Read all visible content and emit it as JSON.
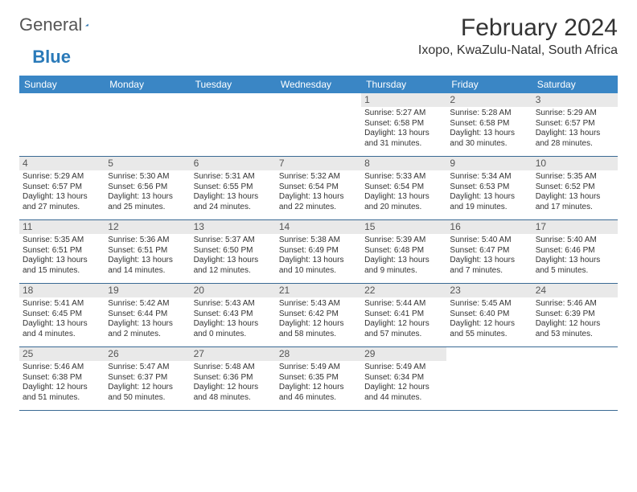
{
  "logo": {
    "text1": "General",
    "text2": "Blue",
    "triangle_color": "#2a7ab9"
  },
  "title": "February 2024",
  "location": "Ixopo, KwaZulu-Natal, South Africa",
  "colors": {
    "header_bg": "#3a86c5",
    "header_fg": "#ffffff",
    "row_border": "#3a6a94",
    "daynum_bg": "#e9e9e9",
    "daynum_fg": "#555555",
    "text": "#333333",
    "background": "#ffffff"
  },
  "day_headers": [
    "Sunday",
    "Monday",
    "Tuesday",
    "Wednesday",
    "Thursday",
    "Friday",
    "Saturday"
  ],
  "weeks": [
    [
      {
        "empty": true
      },
      {
        "empty": true
      },
      {
        "empty": true
      },
      {
        "empty": true
      },
      {
        "num": "1",
        "sunrise": "Sunrise: 5:27 AM",
        "sunset": "Sunset: 6:58 PM",
        "daylight": "Daylight: 13 hours and 31 minutes."
      },
      {
        "num": "2",
        "sunrise": "Sunrise: 5:28 AM",
        "sunset": "Sunset: 6:58 PM",
        "daylight": "Daylight: 13 hours and 30 minutes."
      },
      {
        "num": "3",
        "sunrise": "Sunrise: 5:29 AM",
        "sunset": "Sunset: 6:57 PM",
        "daylight": "Daylight: 13 hours and 28 minutes."
      }
    ],
    [
      {
        "num": "4",
        "sunrise": "Sunrise: 5:29 AM",
        "sunset": "Sunset: 6:57 PM",
        "daylight": "Daylight: 13 hours and 27 minutes."
      },
      {
        "num": "5",
        "sunrise": "Sunrise: 5:30 AM",
        "sunset": "Sunset: 6:56 PM",
        "daylight": "Daylight: 13 hours and 25 minutes."
      },
      {
        "num": "6",
        "sunrise": "Sunrise: 5:31 AM",
        "sunset": "Sunset: 6:55 PM",
        "daylight": "Daylight: 13 hours and 24 minutes."
      },
      {
        "num": "7",
        "sunrise": "Sunrise: 5:32 AM",
        "sunset": "Sunset: 6:54 PM",
        "daylight": "Daylight: 13 hours and 22 minutes."
      },
      {
        "num": "8",
        "sunrise": "Sunrise: 5:33 AM",
        "sunset": "Sunset: 6:54 PM",
        "daylight": "Daylight: 13 hours and 20 minutes."
      },
      {
        "num": "9",
        "sunrise": "Sunrise: 5:34 AM",
        "sunset": "Sunset: 6:53 PM",
        "daylight": "Daylight: 13 hours and 19 minutes."
      },
      {
        "num": "10",
        "sunrise": "Sunrise: 5:35 AM",
        "sunset": "Sunset: 6:52 PM",
        "daylight": "Daylight: 13 hours and 17 minutes."
      }
    ],
    [
      {
        "num": "11",
        "sunrise": "Sunrise: 5:35 AM",
        "sunset": "Sunset: 6:51 PM",
        "daylight": "Daylight: 13 hours and 15 minutes."
      },
      {
        "num": "12",
        "sunrise": "Sunrise: 5:36 AM",
        "sunset": "Sunset: 6:51 PM",
        "daylight": "Daylight: 13 hours and 14 minutes."
      },
      {
        "num": "13",
        "sunrise": "Sunrise: 5:37 AM",
        "sunset": "Sunset: 6:50 PM",
        "daylight": "Daylight: 13 hours and 12 minutes."
      },
      {
        "num": "14",
        "sunrise": "Sunrise: 5:38 AM",
        "sunset": "Sunset: 6:49 PM",
        "daylight": "Daylight: 13 hours and 10 minutes."
      },
      {
        "num": "15",
        "sunrise": "Sunrise: 5:39 AM",
        "sunset": "Sunset: 6:48 PM",
        "daylight": "Daylight: 13 hours and 9 minutes."
      },
      {
        "num": "16",
        "sunrise": "Sunrise: 5:40 AM",
        "sunset": "Sunset: 6:47 PM",
        "daylight": "Daylight: 13 hours and 7 minutes."
      },
      {
        "num": "17",
        "sunrise": "Sunrise: 5:40 AM",
        "sunset": "Sunset: 6:46 PM",
        "daylight": "Daylight: 13 hours and 5 minutes."
      }
    ],
    [
      {
        "num": "18",
        "sunrise": "Sunrise: 5:41 AM",
        "sunset": "Sunset: 6:45 PM",
        "daylight": "Daylight: 13 hours and 4 minutes."
      },
      {
        "num": "19",
        "sunrise": "Sunrise: 5:42 AM",
        "sunset": "Sunset: 6:44 PM",
        "daylight": "Daylight: 13 hours and 2 minutes."
      },
      {
        "num": "20",
        "sunrise": "Sunrise: 5:43 AM",
        "sunset": "Sunset: 6:43 PM",
        "daylight": "Daylight: 13 hours and 0 minutes."
      },
      {
        "num": "21",
        "sunrise": "Sunrise: 5:43 AM",
        "sunset": "Sunset: 6:42 PM",
        "daylight": "Daylight: 12 hours and 58 minutes."
      },
      {
        "num": "22",
        "sunrise": "Sunrise: 5:44 AM",
        "sunset": "Sunset: 6:41 PM",
        "daylight": "Daylight: 12 hours and 57 minutes."
      },
      {
        "num": "23",
        "sunrise": "Sunrise: 5:45 AM",
        "sunset": "Sunset: 6:40 PM",
        "daylight": "Daylight: 12 hours and 55 minutes."
      },
      {
        "num": "24",
        "sunrise": "Sunrise: 5:46 AM",
        "sunset": "Sunset: 6:39 PM",
        "daylight": "Daylight: 12 hours and 53 minutes."
      }
    ],
    [
      {
        "num": "25",
        "sunrise": "Sunrise: 5:46 AM",
        "sunset": "Sunset: 6:38 PM",
        "daylight": "Daylight: 12 hours and 51 minutes."
      },
      {
        "num": "26",
        "sunrise": "Sunrise: 5:47 AM",
        "sunset": "Sunset: 6:37 PM",
        "daylight": "Daylight: 12 hours and 50 minutes."
      },
      {
        "num": "27",
        "sunrise": "Sunrise: 5:48 AM",
        "sunset": "Sunset: 6:36 PM",
        "daylight": "Daylight: 12 hours and 48 minutes."
      },
      {
        "num": "28",
        "sunrise": "Sunrise: 5:49 AM",
        "sunset": "Sunset: 6:35 PM",
        "daylight": "Daylight: 12 hours and 46 minutes."
      },
      {
        "num": "29",
        "sunrise": "Sunrise: 5:49 AM",
        "sunset": "Sunset: 6:34 PM",
        "daylight": "Daylight: 12 hours and 44 minutes."
      },
      {
        "empty": true
      },
      {
        "empty": true
      }
    ]
  ]
}
